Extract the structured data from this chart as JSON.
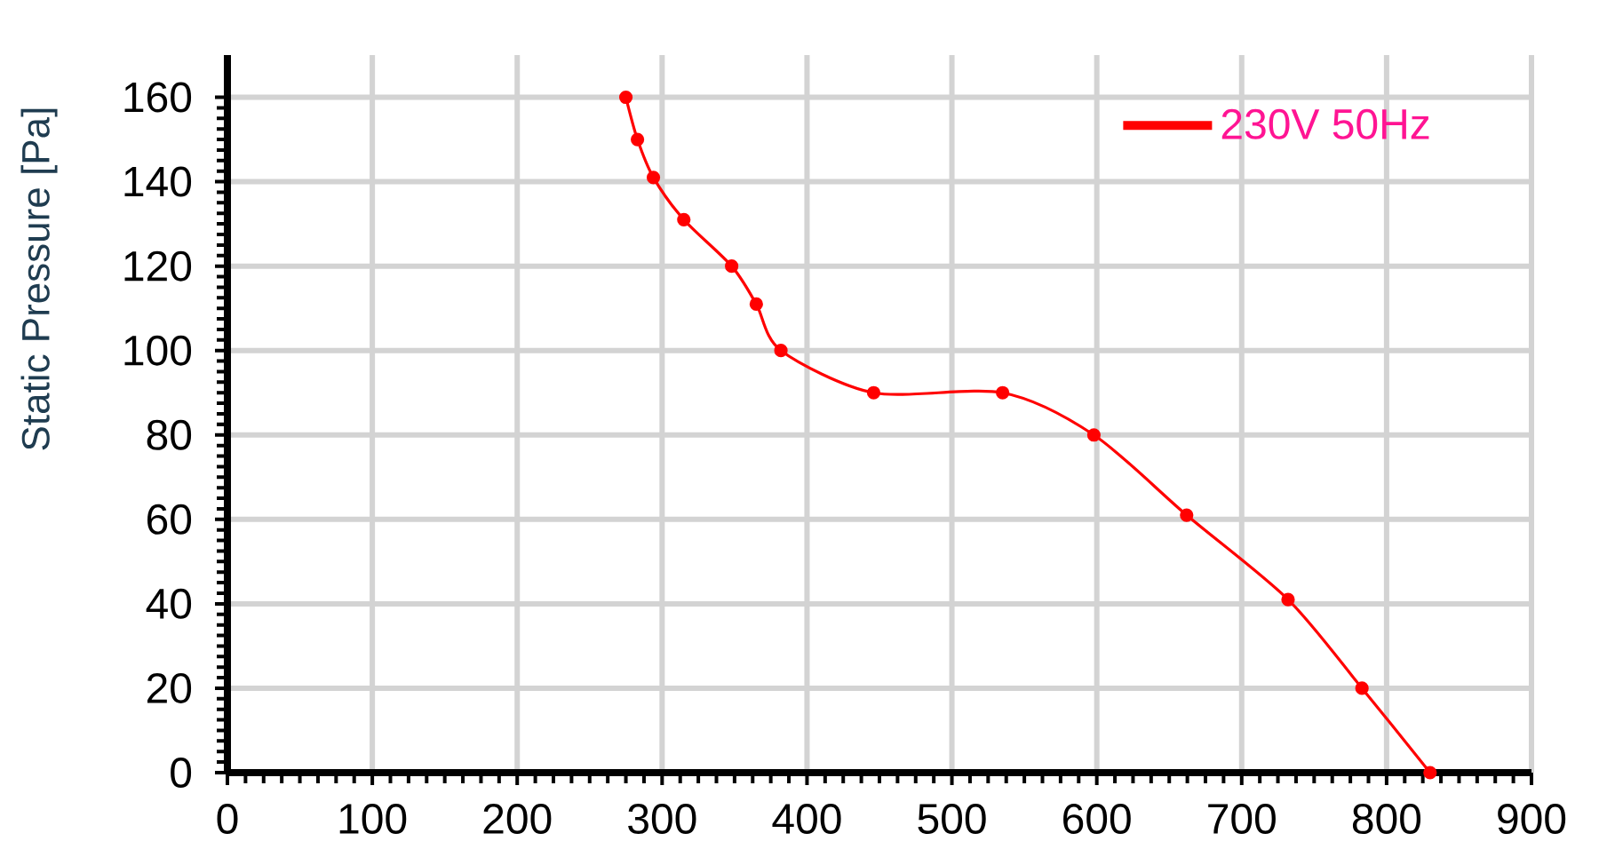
{
  "chart_data": {
    "type": "line",
    "ylabel": "Static Pressure [Pa]",
    "x": [
      275,
      283,
      294,
      315,
      348,
      365,
      382,
      446,
      535,
      598,
      662,
      732,
      783,
      830
    ],
    "series": [
      {
        "name": "230V 50Hz",
        "color": "#ff0000",
        "values": [
          160,
          150,
          141,
          131,
          120,
          111,
          100,
          90,
          90,
          80,
          61,
          41,
          20,
          0
        ]
      }
    ],
    "xlim": [
      0,
      900
    ],
    "ylim": [
      0,
      170
    ],
    "xticks": [
      0,
      100,
      200,
      300,
      400,
      500,
      600,
      700,
      800,
      900
    ],
    "yticks": [
      0,
      20,
      40,
      60,
      80,
      100,
      120,
      140,
      160
    ],
    "grid": true,
    "legend": "top right",
    "marker": "circle",
    "line_style": "solid"
  }
}
